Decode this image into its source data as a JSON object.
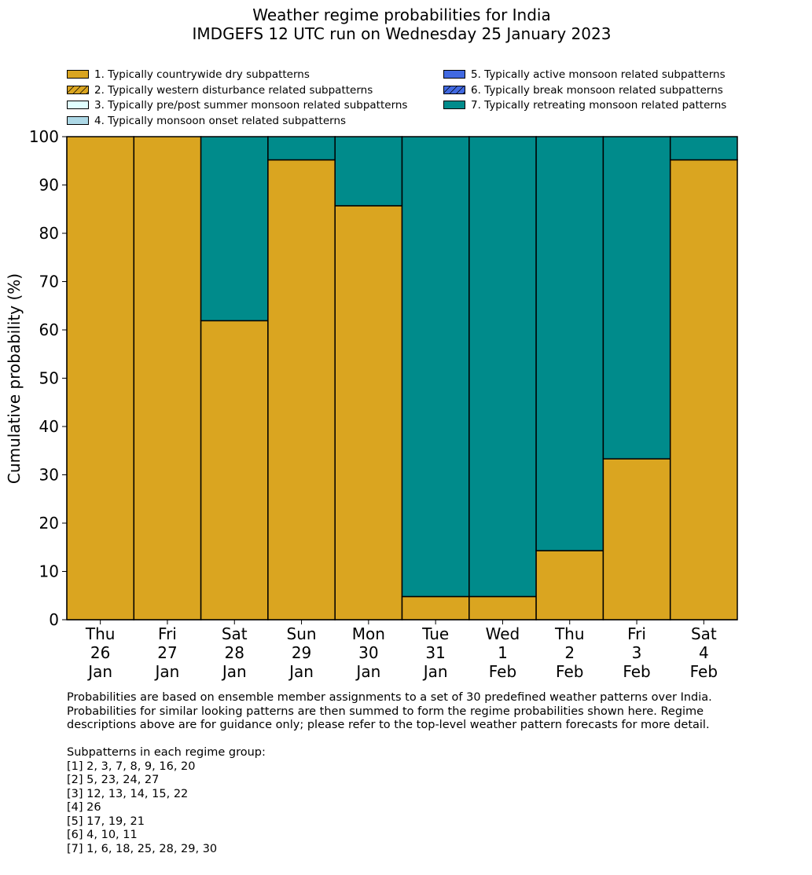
{
  "title": {
    "line1": "Weather regime probabilities for India",
    "line2": "IMDGEFS 12 UTC run on Wednesday 25 January 2023"
  },
  "legend": [
    {
      "label": "1. Typically countrywide dry subpatterns",
      "color": "#DAA520",
      "hatch": false
    },
    {
      "label": "2. Typically western disturbance related subpatterns",
      "color": "#DAA520",
      "hatch": true
    },
    {
      "label": "3. Typically pre/post summer monsoon related subpatterns",
      "color": "#E0FFFF",
      "hatch": false
    },
    {
      "label": "4. Typically monsoon onset related subpatterns",
      "color": "#ADD8E6",
      "hatch": false
    },
    {
      "label": "5. Typically active monsoon related subpatterns",
      "color": "#4169E1",
      "hatch": false
    },
    {
      "label": "6. Typically break monsoon related subpatterns",
      "color": "#4169E1",
      "hatch": true
    },
    {
      "label": "7. Typically retreating monsoon related patterns",
      "color": "#008B8B",
      "hatch": false
    }
  ],
  "chart_data": {
    "type": "bar",
    "stacked": true,
    "categories": [
      [
        "Thu",
        "26",
        "Jan"
      ],
      [
        "Fri",
        "27",
        "Jan"
      ],
      [
        "Sat",
        "28",
        "Jan"
      ],
      [
        "Sun",
        "29",
        "Jan"
      ],
      [
        "Mon",
        "30",
        "Jan"
      ],
      [
        "Tue",
        "31",
        "Jan"
      ],
      [
        "Wed",
        "1",
        "Feb"
      ],
      [
        "Thu",
        "2",
        "Feb"
      ],
      [
        "Fri",
        "3",
        "Feb"
      ],
      [
        "Sat",
        "4",
        "Feb"
      ]
    ],
    "series": [
      {
        "name": "1. Typically countrywide dry subpatterns",
        "color": "#DAA520",
        "values": [
          100,
          100,
          61.9,
          95.2,
          85.7,
          4.8,
          4.8,
          14.3,
          33.3,
          95.2
        ]
      },
      {
        "name": "7. Typically retreating monsoon related patterns",
        "color": "#008B8B",
        "values": [
          0,
          0,
          38.1,
          4.8,
          14.3,
          95.2,
          95.2,
          85.7,
          66.7,
          4.8
        ]
      }
    ],
    "ylabel": "Cumulative probability (%)",
    "xlabel": "",
    "ylim": [
      0,
      100
    ],
    "yticks": [
      0,
      10,
      20,
      30,
      40,
      50,
      60,
      70,
      80,
      90,
      100
    ]
  },
  "notes": {
    "lines": [
      "Probabilities are based on ensemble member assignments to a set of 30 predefined weather patterns over India.",
      "Probabilities for similar looking patterns are then summed to form the regime probabilities shown here. Regime",
      "descriptions above are for guidance only; please refer to the top-level weather pattern forecasts for more detail.",
      "",
      "Subpatterns in each regime group:",
      "[1] 2, 3, 7, 8, 9, 16, 20",
      "[2] 5, 23, 24, 27",
      "[3] 12, 13, 14, 15, 22",
      "[4] 26",
      "[5] 17, 19, 21",
      "[6] 4, 10, 11",
      "[7] 1, 6, 18, 25, 28, 29, 30"
    ]
  }
}
